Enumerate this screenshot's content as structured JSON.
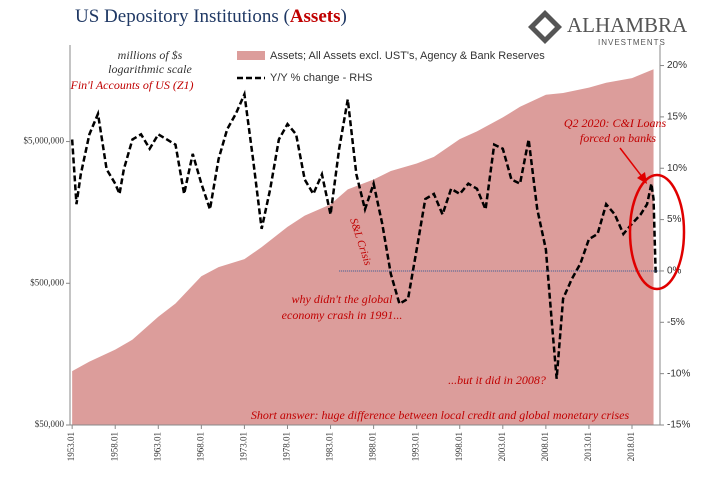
{
  "chart_data": {
    "type": "area-line",
    "title_parts": [
      "US Depository Institutions (",
      "Assets",
      ")"
    ],
    "logo": [
      "ALHAMBRA",
      "INVESTMENTS"
    ],
    "log_scale_y": true,
    "xlim": [
      1952.75,
      2021.25
    ],
    "xticks": [
      {
        "value": 1953,
        "label": "1953.01"
      },
      {
        "value": 1958,
        "label": "1958.01"
      },
      {
        "value": 1963,
        "label": "1963.01"
      },
      {
        "value": 1968,
        "label": "1968.01"
      },
      {
        "value": 1973,
        "label": "1973.01"
      },
      {
        "value": 1978,
        "label": "1978.01"
      },
      {
        "value": 1983,
        "label": "1983.01"
      },
      {
        "value": 1988,
        "label": "1988.01"
      },
      {
        "value": 1993,
        "label": "1993.01"
      },
      {
        "value": 1998,
        "label": "1998.01"
      },
      {
        "value": 2003,
        "label": "2003.01"
      },
      {
        "value": 2008,
        "label": "2008.01"
      },
      {
        "value": 2013,
        "label": "2013.01"
      },
      {
        "value": 2018,
        "label": "2018.01"
      }
    ],
    "ylim": [
      50000,
      24000000
    ],
    "yticks": [
      {
        "value": 50000,
        "label": "$50,000"
      },
      {
        "value": 500000,
        "label": "$500,000"
      },
      {
        "value": 5000000,
        "label": "$5,000,000"
      }
    ],
    "y2lim": [
      -15,
      22
    ],
    "y2ticks": [
      {
        "value": 20,
        "label": "20%"
      },
      {
        "value": 15,
        "label": "15%"
      },
      {
        "value": 10,
        "label": "10%"
      },
      {
        "value": 5,
        "label": "5%"
      },
      {
        "value": 0,
        "label": "0%"
      },
      {
        "value": -5,
        "label": "-5%"
      },
      {
        "value": -10,
        "label": "-10%"
      },
      {
        "value": -15,
        "label": "-15%"
      }
    ],
    "hline_y2": 0,
    "series": [
      {
        "name": "Assets; All Assets excl. UST's, Agency & Bank Reserves",
        "color": "#dc9d9b",
        "axis": "y",
        "x": [
          1953,
          1955,
          1958,
          1960,
          1963,
          1965,
          1968,
          1970,
          1973,
          1975,
          1978,
          1980,
          1983,
          1985,
          1988,
          1990,
          1993,
          1995,
          1998,
          2000,
          2003,
          2005,
          2008,
          2010,
          2013,
          2015,
          2018,
          2020.5
        ],
        "values": [
          120000,
          140000,
          170000,
          200000,
          290000,
          360000,
          560000,
          650000,
          740000,
          900000,
          1250000,
          1500000,
          1800000,
          2300000,
          2700000,
          3100000,
          3500000,
          3900000,
          5200000,
          5900000,
          7400000,
          8800000,
          10700000,
          11000000,
          12000000,
          13000000,
          14000000,
          16200000
        ]
      },
      {
        "name": "Y/Y % change - RHS",
        "color": "#000000",
        "axis": "y2",
        "x": [
          1953,
          1953.5,
          1954,
          1955,
          1956,
          1957,
          1958,
          1958.5,
          1959,
          1960,
          1961,
          1962,
          1963,
          1964,
          1965,
          1966,
          1967,
          1968,
          1969,
          1970,
          1971,
          1972,
          1973,
          1974,
          1975,
          1976,
          1977,
          1978,
          1979,
          1980,
          1981,
          1982,
          1983,
          1984,
          1985,
          1986,
          1987,
          1988,
          1989,
          1990,
          1991,
          1992,
          1993,
          1994,
          1995,
          1996,
          1997,
          1998,
          1999,
          2000,
          2001,
          2002,
          2003,
          2004,
          2005,
          2006,
          2007,
          2008,
          2008.75,
          2009.25,
          2010,
          2011,
          2012,
          2013,
          2014,
          2015,
          2016,
          2017,
          2018,
          2019,
          2019.75,
          2020.25,
          2020.5,
          2020.75
        ],
        "values": [
          12.8,
          6.5,
          9.4,
          13.3,
          15.3,
          9.9,
          8.5,
          7.5,
          9.9,
          12.8,
          13.3,
          11.9,
          13.3,
          12.8,
          12.3,
          7.5,
          11.4,
          8.5,
          6.0,
          10.9,
          13.8,
          15.3,
          17.2,
          10.9,
          4.1,
          8.0,
          12.8,
          14.3,
          13.3,
          8.9,
          7.5,
          9.4,
          5.5,
          11.9,
          16.7,
          9.4,
          6.0,
          8.5,
          4.6,
          -0.3,
          -3.2,
          -2.7,
          2.1,
          7.0,
          7.5,
          5.5,
          8.0,
          7.5,
          8.5,
          8.0,
          6.0,
          12.3,
          11.9,
          8.9,
          8.5,
          12.8,
          6.0,
          2.1,
          -5.6,
          -10.5,
          -2.7,
          -0.8,
          0.7,
          3.1,
          3.6,
          6.5,
          5.5,
          3.6,
          4.6,
          5.5,
          6.5,
          8.5,
          7.0,
          -0.3
        ]
      }
    ],
    "annotations": [
      "millions of $s",
      "logarithmic scale",
      "Fin'l Accounts of US (Z1)",
      "Q2 2020: C&I Loans",
      "forced on banks",
      "S&L Crisis",
      "why didn't the global",
      "economy crash in 1991...",
      "...but it did in 2008?",
      "Short answer: huge difference between local credit and global monetary crises"
    ]
  }
}
